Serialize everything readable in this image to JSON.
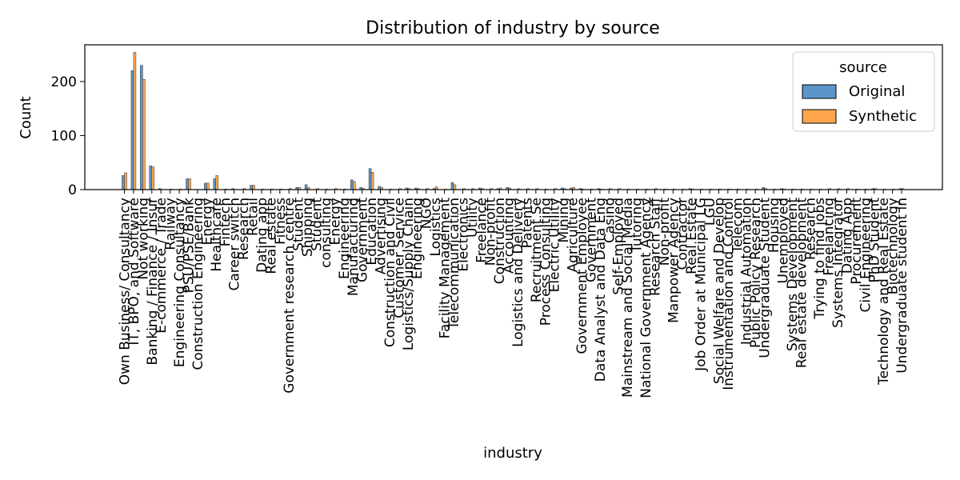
{
  "chart_data": {
    "type": "bar",
    "title": "Distribution of industry by source",
    "xlabel": "industry",
    "ylabel": "Count",
    "ylim": [
      0,
      268
    ],
    "yticks": [
      0,
      100,
      200
    ],
    "grid": false,
    "legend": {
      "title": "source",
      "placement": "top-right"
    },
    "categories": [
      "Own Business/ Consultancy",
      "IT, BPO, and Software",
      "Not working",
      "Banking / Finance / Insur",
      "E-commerce / Trade",
      "Railway",
      "Engineering Consultancy",
      "PSU/PSE/Bank",
      "Construction Engineering",
      "Energy",
      "Healthcare",
      "Fintech",
      "Career switch",
      "Research",
      "Retail",
      "Dating app",
      "Real estate",
      "Fitness",
      "Government research centre",
      "Student",
      "Shipping",
      "Student",
      "consulting",
      "Energy",
      "Engineering",
      "Manufacturing",
      "Government",
      "Education",
      "Advertising",
      "Construction and Civil",
      "Customer Service",
      "Logistics/Supply Chain",
      "Engineering",
      "NGO",
      "Logistics",
      "Facility Management",
      "Telecommunication",
      "Electronics",
      "Utility",
      "Freelance",
      "Non-profit",
      "Construction",
      "Accounting",
      "Logistics and Delivery",
      "Patents",
      "Recruitment Se",
      "Process Consulting",
      "Electric Utility",
      "Mining",
      "Agriculture",
      "Government Employee",
      "Government",
      "Data Analyst and Data Eng",
      "Casino",
      "Self-Employed",
      "Mainstream and Social Media",
      "Tutoring",
      "National Government Agency",
      "Research Staff",
      "Non-profit",
      "Manpower Agency",
      "Contractor",
      "Real Estate",
      "Job Order at Municipal LG",
      "LGU",
      "Social Welfare and Develop",
      "Instrumentation and Control",
      "Telecom",
      "Industrial Automation",
      "Public Policy Research",
      "Undergraduate Student",
      "Housing",
      "Unemployed",
      "Systems Development",
      "Real estate development",
      "Research",
      "Trying to find jobs",
      "Freelancing",
      "Systems Integrator",
      "Dating App",
      "Procurement",
      "Civil Engineering",
      "PhD Student",
      "Technology and Real Estate",
      "Biotechnology",
      "Undergraduate student in"
    ],
    "series": [
      {
        "name": "Original",
        "color": "#5a96c8",
        "values": [
          26,
          220,
          230,
          44,
          2,
          0,
          0,
          20,
          0,
          12,
          20,
          0,
          2,
          0,
          8,
          0,
          0,
          0,
          0,
          4,
          9,
          0,
          0,
          0,
          0,
          18,
          4,
          39,
          6,
          0,
          0,
          3,
          3,
          0,
          2,
          0,
          13,
          0,
          0,
          3,
          0,
          2,
          4,
          0,
          0,
          0,
          0,
          0,
          3,
          3,
          2,
          0,
          2,
          0,
          0,
          0,
          0,
          0,
          0,
          0,
          0,
          0,
          2,
          0,
          0,
          0,
          0,
          0,
          0,
          0,
          4,
          0,
          2,
          0,
          0,
          0,
          0,
          0,
          0,
          0,
          0,
          0,
          2,
          0,
          0,
          2
        ]
      },
      {
        "name": "Synthetic",
        "color": "#ffa64d",
        "values": [
          31,
          254,
          204,
          42,
          0,
          1,
          1,
          20,
          0,
          12,
          26,
          1,
          0,
          2,
          8,
          1,
          1,
          1,
          2,
          4,
          4,
          2,
          1,
          2,
          1,
          15,
          2,
          32,
          4,
          1,
          2,
          2,
          2,
          2,
          5,
          1,
          9,
          2,
          2,
          2,
          2,
          3,
          3,
          2,
          2,
          2,
          1,
          2,
          2,
          4,
          1,
          1,
          1,
          2,
          2,
          1,
          1,
          1,
          2,
          1,
          1,
          1,
          1,
          1,
          1,
          1,
          1,
          1,
          1,
          1,
          2,
          1,
          1,
          1,
          1,
          1,
          1,
          2,
          2,
          2,
          1,
          1,
          2,
          1,
          1,
          2
        ]
      }
    ]
  }
}
